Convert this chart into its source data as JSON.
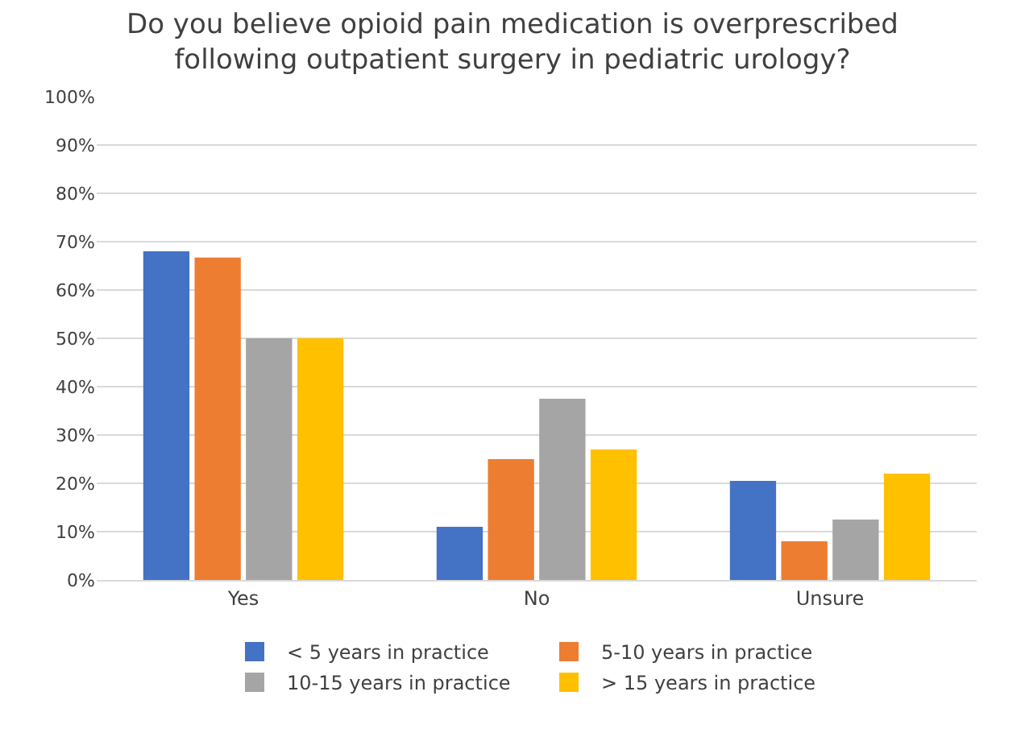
{
  "chart_data": {
    "type": "bar",
    "title": "Do you believe opioid pain medication is overprescribed following outpatient surgery in pediatric urology?",
    "categories": [
      "Yes",
      "No",
      "Unsure"
    ],
    "series": [
      {
        "name": "< 5 years in practice",
        "color": "#4472c4",
        "values": [
          68,
          11,
          20.5
        ]
      },
      {
        "name": "5-10 years in practice",
        "color": "#ed7d31",
        "values": [
          66.7,
          25,
          8
        ]
      },
      {
        "name": "10-15 years in practice",
        "color": "#a5a5a5",
        "values": [
          50,
          37.5,
          12.5
        ]
      },
      {
        "name": "> 15 years in practice",
        "color": "#ffc000",
        "values": [
          50,
          27,
          22
        ]
      }
    ],
    "ylim": [
      0,
      100
    ],
    "yticks": [
      {
        "value": 0,
        "label": "0%"
      },
      {
        "value": 10,
        "label": "10%"
      },
      {
        "value": 20,
        "label": "20%"
      },
      {
        "value": 30,
        "label": "30%"
      },
      {
        "value": 40,
        "label": "40%"
      },
      {
        "value": 50,
        "label": "50%"
      },
      {
        "value": 60,
        "label": "60%"
      },
      {
        "value": 70,
        "label": "70%"
      },
      {
        "value": 80,
        "label": "80%"
      },
      {
        "value": 90,
        "label": "90%"
      },
      {
        "value": 100,
        "label": "100%"
      }
    ],
    "grid": "y",
    "legend": "bottom"
  }
}
